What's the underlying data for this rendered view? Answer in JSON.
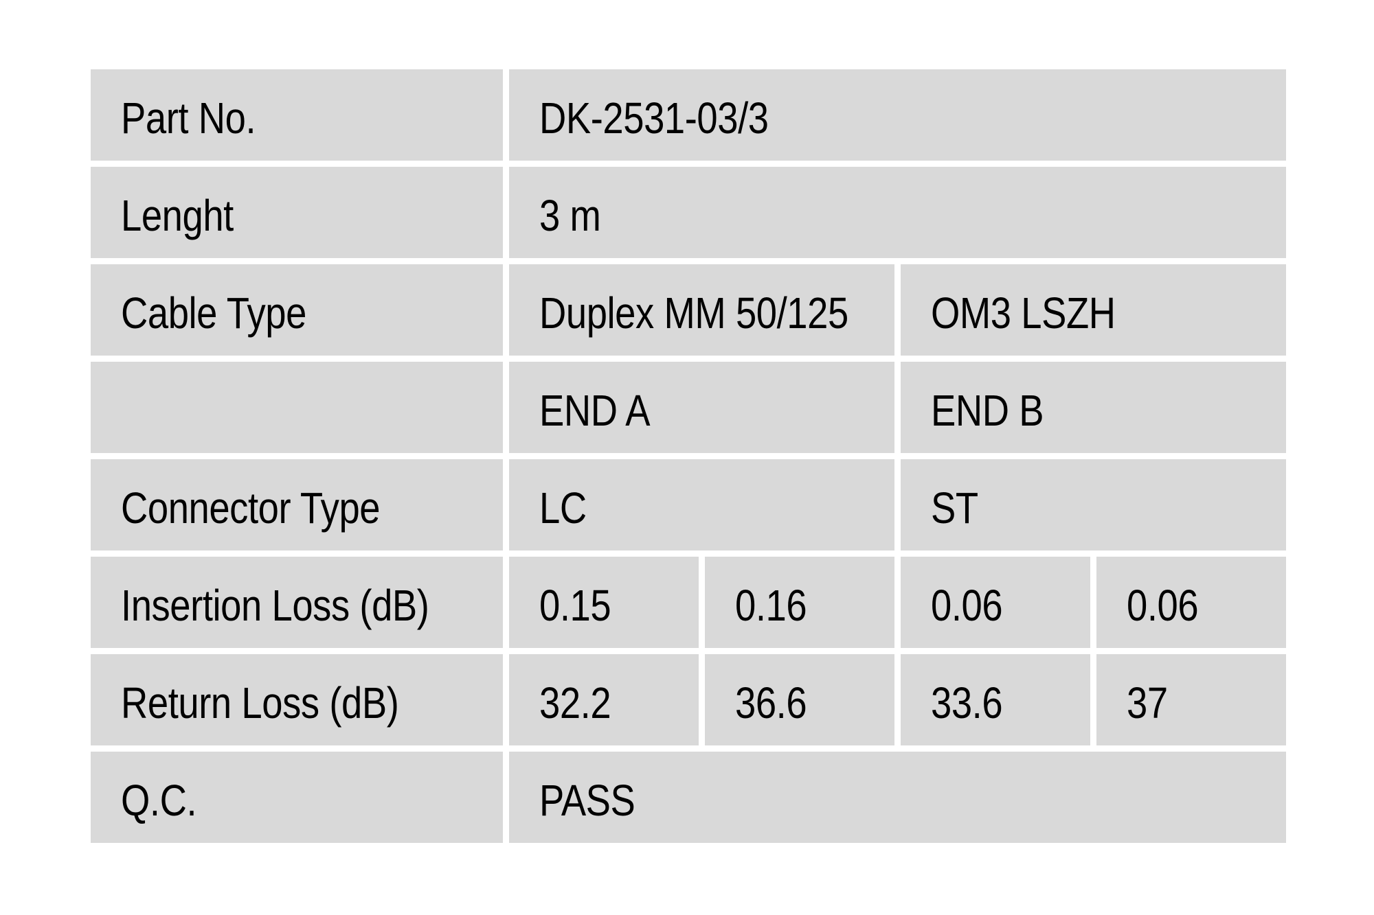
{
  "colors": {
    "page_bg": "#ffffff",
    "cell_bg": "#d9d9d9",
    "text": "#000000"
  },
  "table": {
    "rows": [
      {
        "label": "Part No.",
        "cells": [
          {
            "text": "DK-2531-03/3",
            "span": 4
          }
        ]
      },
      {
        "label": "Lenght",
        "cells": [
          {
            "text": "3 m",
            "span": 4
          }
        ]
      },
      {
        "label": "Cable Type",
        "cells": [
          {
            "text": "Duplex MM 50/125",
            "span": 2
          },
          {
            "text": "OM3 LSZH",
            "span": 2
          }
        ]
      },
      {
        "label": "",
        "cells": [
          {
            "text": "END A",
            "span": 2
          },
          {
            "text": "END B",
            "span": 2
          }
        ]
      },
      {
        "label": "Connector Type",
        "cells": [
          {
            "text": "LC",
            "span": 2
          },
          {
            "text": "ST",
            "span": 2
          }
        ]
      },
      {
        "label": "Insertion Loss (dB)",
        "cells": [
          {
            "text": "0.15",
            "span": 1
          },
          {
            "text": "0.16",
            "span": 1
          },
          {
            "text": "0.06",
            "span": 1
          },
          {
            "text": "0.06",
            "span": 1
          }
        ]
      },
      {
        "label": "Return Loss (dB)",
        "cells": [
          {
            "text": "32.2",
            "span": 1
          },
          {
            "text": "36.6",
            "span": 1
          },
          {
            "text": "33.6",
            "span": 1
          },
          {
            "text": "37",
            "span": 1
          }
        ]
      },
      {
        "label": "Q.C.",
        "cells": [
          {
            "text": "PASS",
            "span": 4
          }
        ]
      }
    ]
  }
}
